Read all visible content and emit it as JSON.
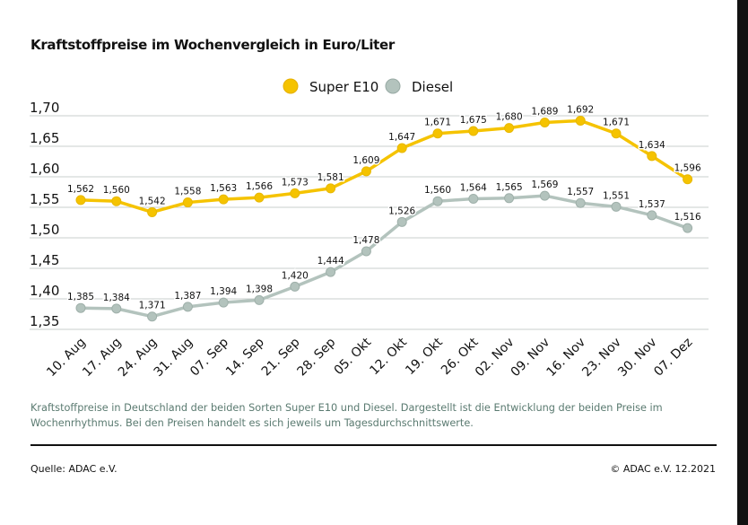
{
  "chart_data": {
    "type": "line",
    "title": "Kraftstoffpreise im Wochenvergleich in Euro/Liter",
    "xlabel": "",
    "ylabel": "",
    "ylim": [
      1.35,
      1.7
    ],
    "yticks": [
      "1,70",
      "1,65",
      "1,60",
      "1,55",
      "1,50",
      "1,45",
      "1,40",
      "1,35"
    ],
    "grid": true,
    "legend": "top-right",
    "categories": [
      "10. Aug",
      "17. Aug",
      "24. Aug",
      "31. Aug",
      "07. Sep",
      "14. Sep",
      "21. Sep",
      "28. Sep",
      "05. Okt",
      "12. Okt",
      "19. Okt",
      "26. Okt",
      "02. Nov",
      "09. Nov",
      "16. Nov",
      "23. Nov",
      "30. Nov",
      "07. Dez"
    ],
    "series": [
      {
        "name": "Super E10",
        "color": "#f5c300",
        "values": [
          1.562,
          1.56,
          1.542,
          1.558,
          1.563,
          1.566,
          1.573,
          1.581,
          1.609,
          1.647,
          1.671,
          1.675,
          1.68,
          1.689,
          1.692,
          1.671,
          1.634,
          1.596
        ],
        "labels": [
          "1,562",
          "1,560",
          "1,542",
          "1,558",
          "1,563",
          "1,566",
          "1,573",
          "1,581",
          "1,609",
          "1,647",
          "1,671",
          "1,675",
          "1,680",
          "1,689",
          "1,692",
          "1,671",
          "1,634",
          "1,596"
        ]
      },
      {
        "name": "Diesel",
        "color": "#b3c3bd",
        "values": [
          1.385,
          1.384,
          1.371,
          1.387,
          1.394,
          1.398,
          1.42,
          1.444,
          1.478,
          1.526,
          1.56,
          1.564,
          1.565,
          1.569,
          1.557,
          1.551,
          1.537,
          1.516
        ],
        "labels": [
          "1,385",
          "1,384",
          "1,371",
          "1,387",
          "1,394",
          "1,398",
          "1,420",
          "1,444",
          "1,478",
          "1,526",
          "1,560",
          "1,564",
          "1,565",
          "1,569",
          "1,557",
          "1,551",
          "1,537",
          "1,516"
        ]
      }
    ]
  },
  "caption": "Kraftstoffpreise in Deutschland der beiden Sorten Super E10 und Diesel. Dargestellt ist die Entwicklung der beiden Preise im Wochenrhythmus. Bei den Preisen handelt es sich jeweils um Tagesdurchschnittswerte.",
  "source": "Quelle: ADAC e.V.",
  "copyright": "© ADAC e.V. 12.2021"
}
